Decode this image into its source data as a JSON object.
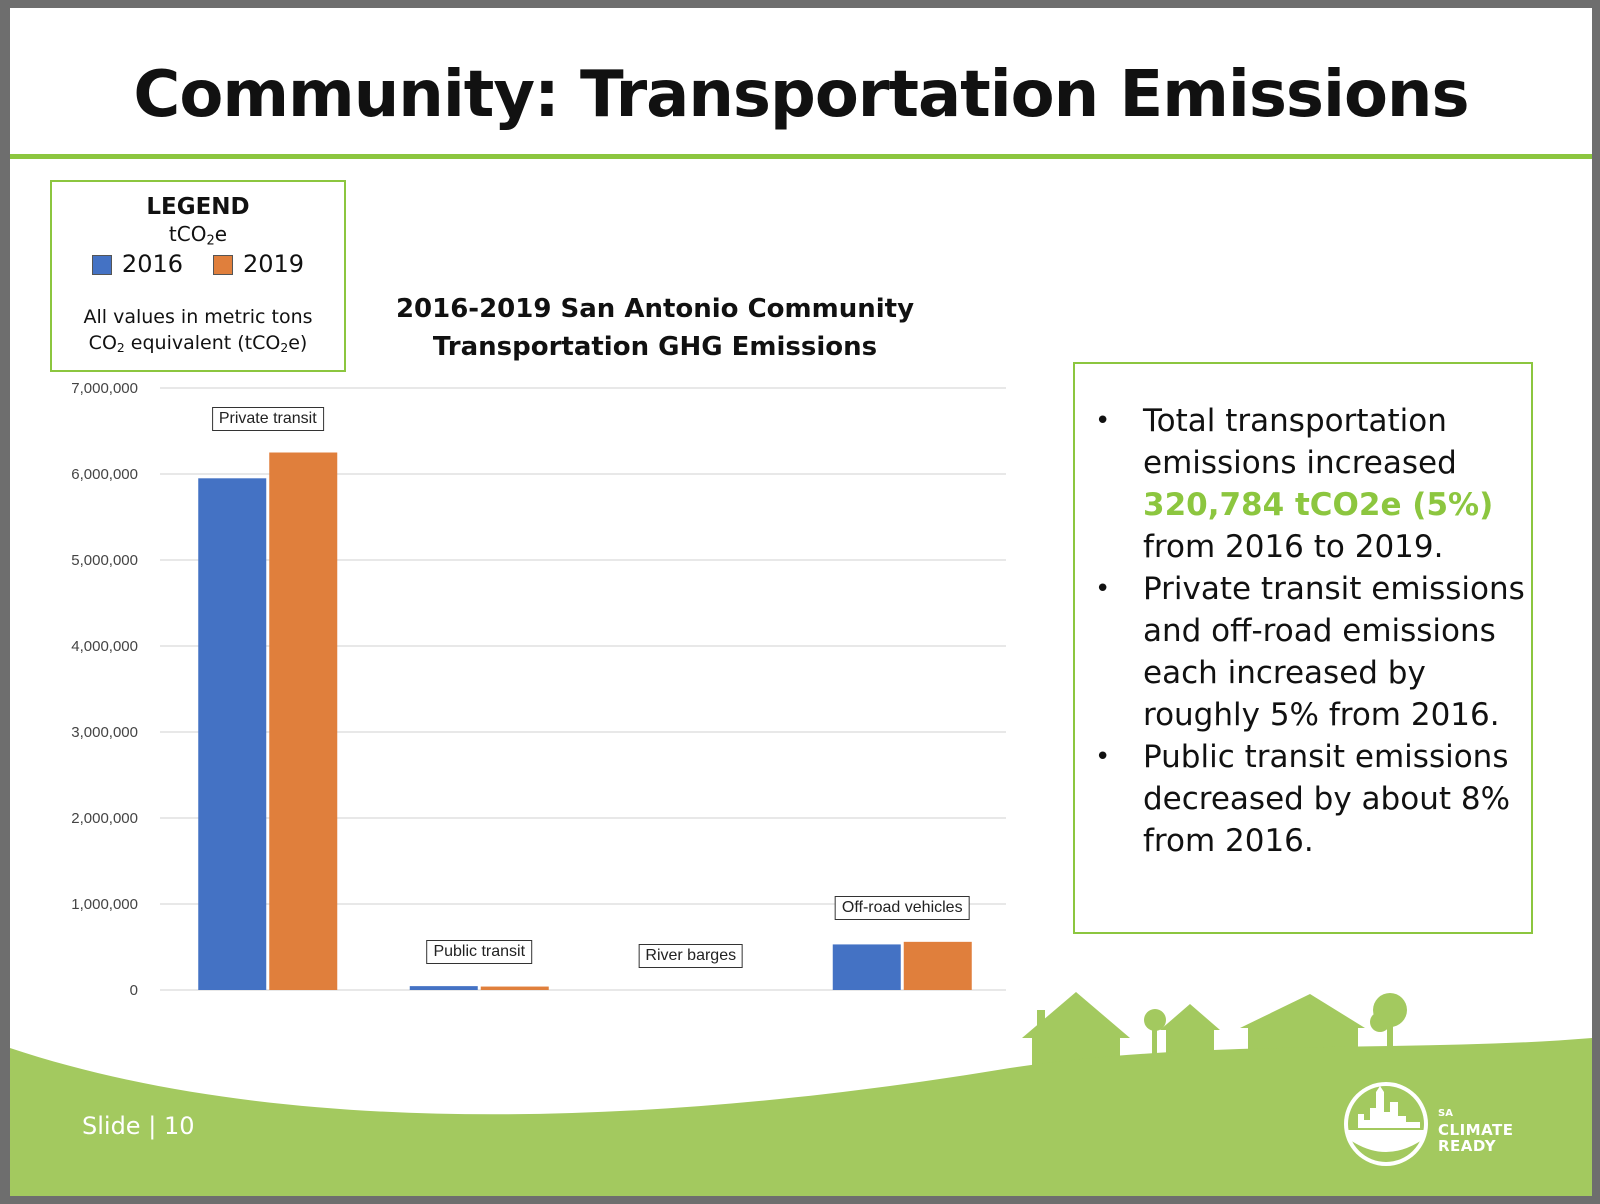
{
  "slide": {
    "title": "Community: Transportation Emissions",
    "footer_label": "Slide",
    "footer_separator": "|",
    "slide_number": "10",
    "logo": {
      "line1": "SA",
      "line2": "CLIMATE",
      "line3": "READY"
    }
  },
  "legend": {
    "heading": "LEGEND",
    "unit_base": "tCO",
    "unit_sub": "2",
    "unit_tail": "e",
    "series": [
      {
        "label": "2016",
        "color": "#4472c4"
      },
      {
        "label": "2019",
        "color": "#e07f3c"
      }
    ],
    "note_line1": "All values in metric tons",
    "note_co": "CO",
    "note_sub": "2",
    "note_mid": " equivalent (tCO",
    "note_sub2": "2",
    "note_end": "e)"
  },
  "chart_data": {
    "type": "bar",
    "title_line1": "2016-2019 San Antonio Community",
    "title_line2": "Transportation GHG Emissions",
    "categories": [
      "Private transit",
      "Public transit",
      "River barges",
      "Off-road vehicles"
    ],
    "series": [
      {
        "name": "2016",
        "color": "#4472c4",
        "values": [
          5950000,
          45000,
          0,
          530000
        ]
      },
      {
        "name": "2019",
        "color": "#e07f3c",
        "values": [
          6250000,
          40000,
          0,
          560000
        ]
      }
    ],
    "ylim": [
      0,
      7000000
    ],
    "yticks": [
      "0",
      "1,000,000",
      "2,000,000",
      "3,000,000",
      "4,000,000",
      "5,000,000",
      "6,000,000",
      "7,000,000"
    ],
    "grid": true
  },
  "bullets": {
    "items": [
      {
        "pre": "Total transportation emissions increased ",
        "highlight": "320,784 tCO2e (5%)",
        "post": " from 2016 to 2019."
      },
      {
        "pre": "Private transit emissions and off-road emissions each increased by roughly 5% from 2016.",
        "highlight": "",
        "post": ""
      },
      {
        "pre": "Public transit emissions decreased by about 8% from 2016.",
        "highlight": "",
        "post": ""
      }
    ],
    "bullet_char": "•",
    "highlight_color": "#8cc63f"
  },
  "colors": {
    "accent_green": "#8cc63f",
    "footer_green": "#a3c95f"
  }
}
